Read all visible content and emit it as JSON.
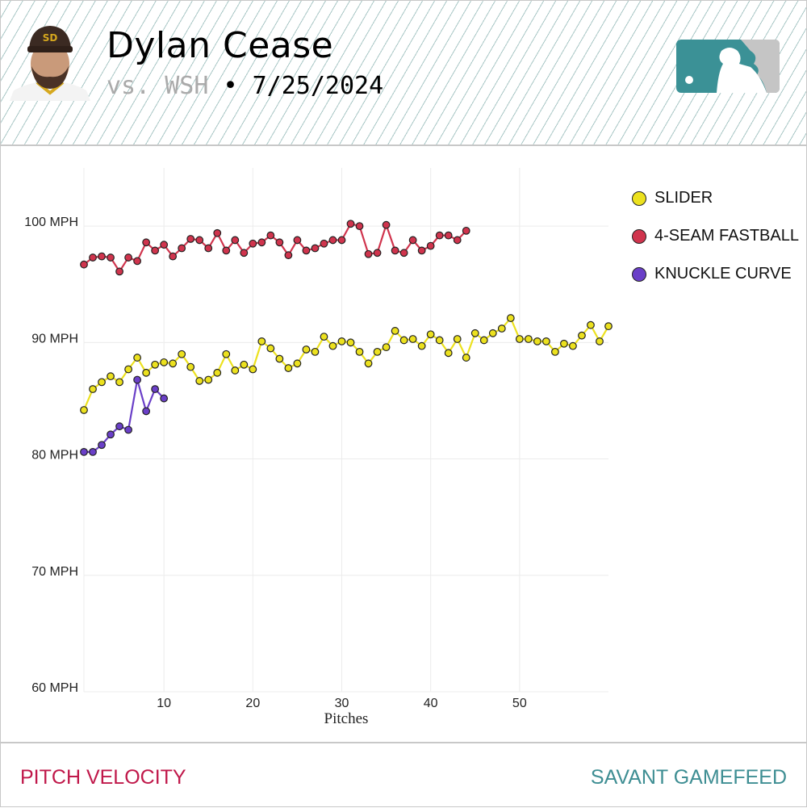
{
  "header": {
    "player_name": "Dylan Cease",
    "opponent": "vs. WSH",
    "separator": "•",
    "date": "7/25/2024",
    "logo": "mlb-logo",
    "photo": "player-headshot"
  },
  "footer": {
    "left_label": "PITCH VELOCITY",
    "right_label": "SAVANT GAMEFEED"
  },
  "colors": {
    "slider": "#ece11e",
    "fastball": "#d0344d",
    "curve": "#6a3fc8",
    "footer_left": "#c0184a",
    "footer_right": "#3e8e93"
  },
  "chart_data": {
    "type": "line",
    "xlabel": "Pitches",
    "ylabel": "",
    "xlim": [
      1,
      60
    ],
    "ylim": [
      60,
      105
    ],
    "xticks": [
      10,
      20,
      30,
      40,
      50
    ],
    "yticks": [
      {
        "value": 60,
        "label": "60 MPH"
      },
      {
        "value": 70,
        "label": "70 MPH"
      },
      {
        "value": 80,
        "label": "80 MPH"
      },
      {
        "value": 90,
        "label": "90 MPH"
      },
      {
        "value": 100,
        "label": "100 MPH"
      }
    ],
    "grid": true,
    "legend_position": "right",
    "series": [
      {
        "name": "SLIDER",
        "color": "#ece11e",
        "values": [
          84.2,
          86.0,
          86.6,
          87.1,
          86.6,
          87.7,
          88.7,
          87.4,
          88.1,
          88.3,
          88.2,
          89.0,
          87.9,
          86.7,
          86.8,
          87.4,
          89.0,
          87.6,
          88.1,
          87.7,
          90.1,
          89.5,
          88.6,
          87.8,
          88.2,
          89.4,
          89.2,
          90.5,
          89.7,
          90.1,
          90.0,
          89.2,
          88.2,
          89.2,
          89.6,
          91.0,
          90.2,
          90.3,
          89.7,
          90.7,
          90.2,
          89.1,
          90.3,
          88.7,
          90.8,
          90.2,
          90.8,
          91.2,
          92.1,
          90.3,
          90.3,
          90.1,
          90.1,
          89.2,
          89.9,
          89.7,
          90.6,
          91.5,
          90.1,
          91.4
        ]
      },
      {
        "name": "4-SEAM FASTBALL",
        "color": "#d0344d",
        "values": [
          96.7,
          97.3,
          97.4,
          97.3,
          96.1,
          97.3,
          97.0,
          98.6,
          97.9,
          98.4,
          97.4,
          98.1,
          98.9,
          98.8,
          98.1,
          99.4,
          97.9,
          98.8,
          97.7,
          98.5,
          98.6,
          99.2,
          98.6,
          97.5,
          98.8,
          97.9,
          98.1,
          98.5,
          98.8,
          98.8,
          100.2,
          100.0,
          97.6,
          97.7,
          100.1,
          97.9,
          97.7,
          98.8,
          97.9,
          98.3,
          99.2,
          99.2,
          98.8,
          99.6
        ]
      },
      {
        "name": "KNUCKLE CURVE",
        "color": "#6a3fc8",
        "values": [
          80.6,
          80.6,
          81.2,
          82.1,
          82.8,
          82.5,
          86.8,
          84.1,
          86.0,
          85.2
        ]
      }
    ]
  }
}
